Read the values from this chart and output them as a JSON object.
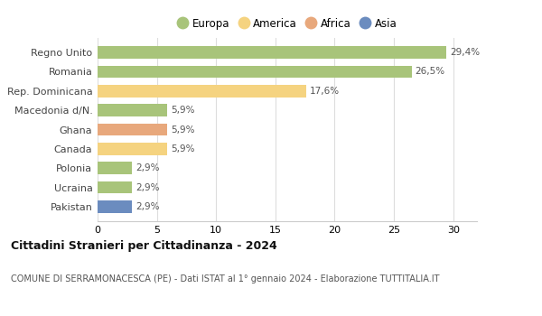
{
  "countries": [
    "Regno Unito",
    "Romania",
    "Rep. Dominicana",
    "Macedonia d/N.",
    "Ghana",
    "Canada",
    "Polonia",
    "Ucraina",
    "Pakistan"
  ],
  "values": [
    29.4,
    26.5,
    17.6,
    5.9,
    5.9,
    5.9,
    2.9,
    2.9,
    2.9
  ],
  "labels": [
    "29,4%",
    "26,5%",
    "17,6%",
    "5,9%",
    "5,9%",
    "5,9%",
    "2,9%",
    "2,9%",
    "2,9%"
  ],
  "continents": [
    "Europa",
    "Europa",
    "America",
    "Europa",
    "Africa",
    "America",
    "Europa",
    "Europa",
    "Asia"
  ],
  "colors": {
    "Europa": "#a8c47a",
    "America": "#f5d380",
    "Africa": "#e8a87c",
    "Asia": "#6b8cbf"
  },
  "legend_order": [
    "Europa",
    "America",
    "Africa",
    "Asia"
  ],
  "xlim": [
    0,
    32
  ],
  "xticks": [
    0,
    5,
    10,
    15,
    20,
    25,
    30
  ],
  "title": "Cittadini Stranieri per Cittadinanza - 2024",
  "subtitle": "COMUNE DI SERRAMONACESCA (PE) - Dati ISTAT al 1° gennaio 2024 - Elaborazione TUTTITALIA.IT",
  "background_color": "#ffffff",
  "bar_height": 0.65,
  "grid_color": "#dddddd"
}
